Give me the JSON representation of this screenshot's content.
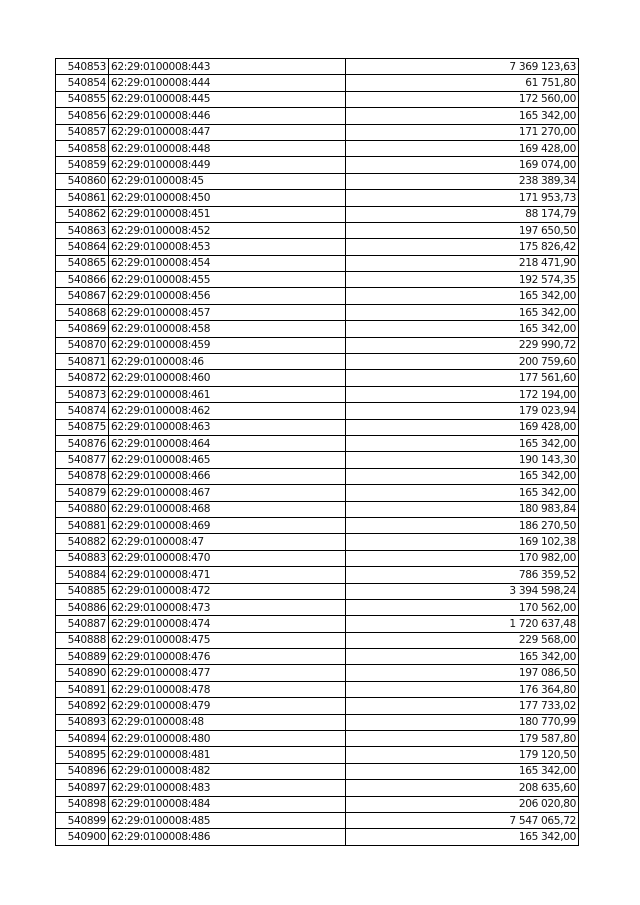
{
  "table": {
    "rows": [
      [
        "540853",
        "62:29:0100008:443",
        "7 369 123,63"
      ],
      [
        "540854",
        "62:29:0100008:444",
        "61 751,80"
      ],
      [
        "540855",
        "62:29:0100008:445",
        "172 560,00"
      ],
      [
        "540856",
        "62:29:0100008:446",
        "165 342,00"
      ],
      [
        "540857",
        "62:29:0100008:447",
        "171 270,00"
      ],
      [
        "540858",
        "62:29:0100008:448",
        "169 428,00"
      ],
      [
        "540859",
        "62:29:0100008:449",
        "169 074,00"
      ],
      [
        "540860",
        "62:29:0100008:45",
        "238 389,34"
      ],
      [
        "540861",
        "62:29:0100008:450",
        "171 953,73"
      ],
      [
        "540862",
        "62:29:0100008:451",
        "88 174,79"
      ],
      [
        "540863",
        "62:29:0100008:452",
        "197 650,50"
      ],
      [
        "540864",
        "62:29:0100008:453",
        "175 826,42"
      ],
      [
        "540865",
        "62:29:0100008:454",
        "218 471,90"
      ],
      [
        "540866",
        "62:29:0100008:455",
        "192 574,35"
      ],
      [
        "540867",
        "62:29:0100008:456",
        "165 342,00"
      ],
      [
        "540868",
        "62:29:0100008:457",
        "165 342,00"
      ],
      [
        "540869",
        "62:29:0100008:458",
        "165 342,00"
      ],
      [
        "540870",
        "62:29:0100008:459",
        "229 990,72"
      ],
      [
        "540871",
        "62:29:0100008:46",
        "200 759,60"
      ],
      [
        "540872",
        "62:29:0100008:460",
        "177 561,60"
      ],
      [
        "540873",
        "62:29:0100008:461",
        "172 194,00"
      ],
      [
        "540874",
        "62:29:0100008:462",
        "179 023,94"
      ],
      [
        "540875",
        "62:29:0100008:463",
        "169 428,00"
      ],
      [
        "540876",
        "62:29:0100008:464",
        "165 342,00"
      ],
      [
        "540877",
        "62:29:0100008:465",
        "190 143,30"
      ],
      [
        "540878",
        "62:29:0100008:466",
        "165 342,00"
      ],
      [
        "540879",
        "62:29:0100008:467",
        "165 342,00"
      ],
      [
        "540880",
        "62:29:0100008:468",
        "180 983,84"
      ],
      [
        "540881",
        "62:29:0100008:469",
        "186 270,50"
      ],
      [
        "540882",
        "62:29:0100008:47",
        "169 102,38"
      ],
      [
        "540883",
        "62:29:0100008:470",
        "170 982,00"
      ],
      [
        "540884",
        "62:29:0100008:471",
        "786 359,52"
      ],
      [
        "540885",
        "62:29:0100008:472",
        "3 394 598,24"
      ],
      [
        "540886",
        "62:29:0100008:473",
        "170 562,00"
      ],
      [
        "540887",
        "62:29:0100008:474",
        "1 720 637,48"
      ],
      [
        "540888",
        "62:29:0100008:475",
        "229 568,00"
      ],
      [
        "540889",
        "62:29:0100008:476",
        "165 342,00"
      ],
      [
        "540890",
        "62:29:0100008:477",
        "197 086,50"
      ],
      [
        "540891",
        "62:29:0100008:478",
        "176 364,80"
      ],
      [
        "540892",
        "62:29:0100008:479",
        "177 733,02"
      ],
      [
        "540893",
        "62:29:0100008:48",
        "180 770,99"
      ],
      [
        "540894",
        "62:29:0100008:480",
        "179 587,80"
      ],
      [
        "540895",
        "62:29:0100008:481",
        "179 120,50"
      ],
      [
        "540896",
        "62:29:0100008:482",
        "165 342,00"
      ],
      [
        "540897",
        "62:29:0100008:483",
        "208 635,60"
      ],
      [
        "540898",
        "62:29:0100008:484",
        "206 020,80"
      ],
      [
        "540899",
        "62:29:0100008:485",
        "7 547 065,72"
      ],
      [
        "540900",
        "62:29:0100008:486",
        "165 342,00"
      ]
    ]
  }
}
